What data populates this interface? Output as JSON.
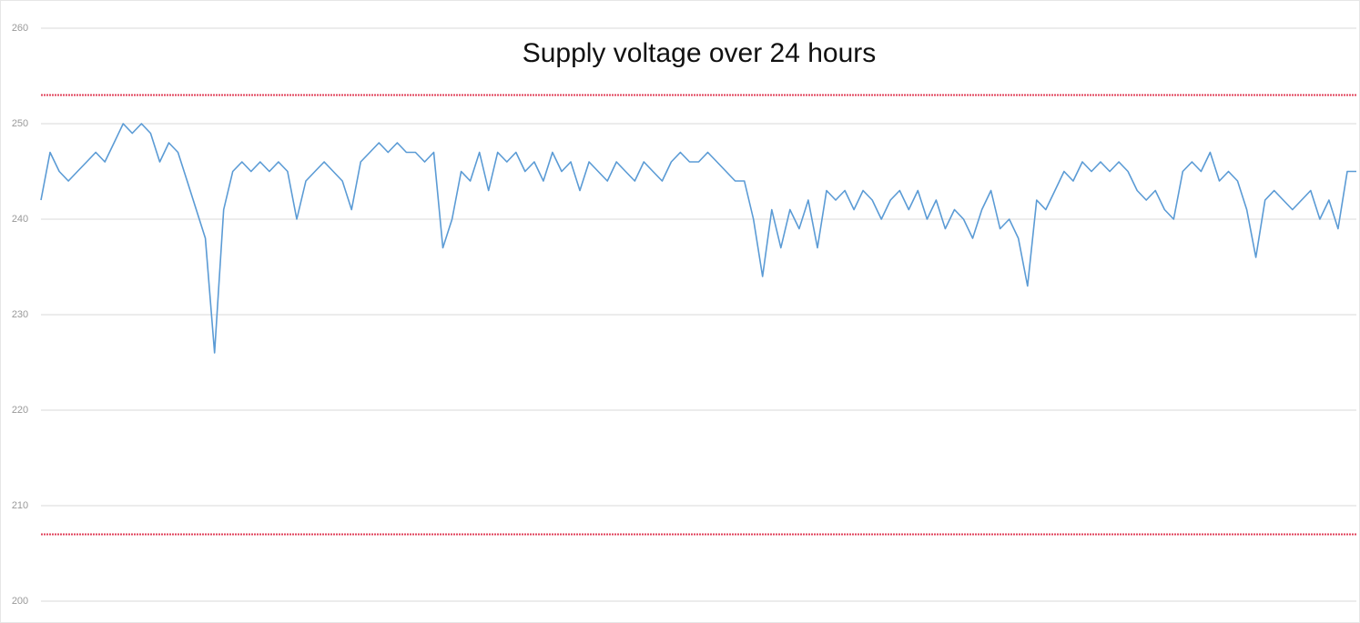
{
  "chart_data": {
    "type": "line",
    "title": "Supply voltage over 24 hours",
    "ylim": [
      200,
      260
    ],
    "yticks": [
      200,
      210,
      220,
      230,
      240,
      250,
      260
    ],
    "grid": true,
    "reference_lines": [
      253,
      207
    ],
    "reference_color": "#e0405a",
    "series": [
      {
        "color": "#5b9bd5",
        "values": [
          242,
          247,
          245,
          244,
          245,
          246,
          247,
          246,
          248,
          250,
          249,
          250,
          249,
          246,
          248,
          247,
          244,
          241,
          238,
          226,
          241,
          245,
          246,
          245,
          246,
          245,
          246,
          245,
          240,
          244,
          245,
          246,
          245,
          244,
          241,
          246,
          247,
          248,
          247,
          248,
          247,
          247,
          246,
          247,
          237,
          240,
          245,
          244,
          247,
          243,
          247,
          246,
          247,
          245,
          246,
          244,
          247,
          245,
          246,
          243,
          246,
          245,
          244,
          246,
          245,
          244,
          246,
          245,
          244,
          246,
          247,
          246,
          246,
          247,
          246,
          245,
          244,
          244,
          240,
          234,
          241,
          237,
          241,
          239,
          242,
          237,
          243,
          242,
          243,
          241,
          243,
          242,
          240,
          242,
          243,
          241,
          243,
          240,
          242,
          239,
          241,
          240,
          238,
          241,
          243,
          239,
          240,
          238,
          233,
          242,
          241,
          243,
          245,
          244,
          246,
          245,
          246,
          245,
          246,
          245,
          243,
          242,
          243,
          241,
          240,
          245,
          246,
          245,
          247,
          244,
          245,
          244,
          241,
          236,
          242,
          243,
          242,
          241,
          242,
          243,
          240,
          242,
          239,
          245,
          245
        ]
      }
    ]
  }
}
